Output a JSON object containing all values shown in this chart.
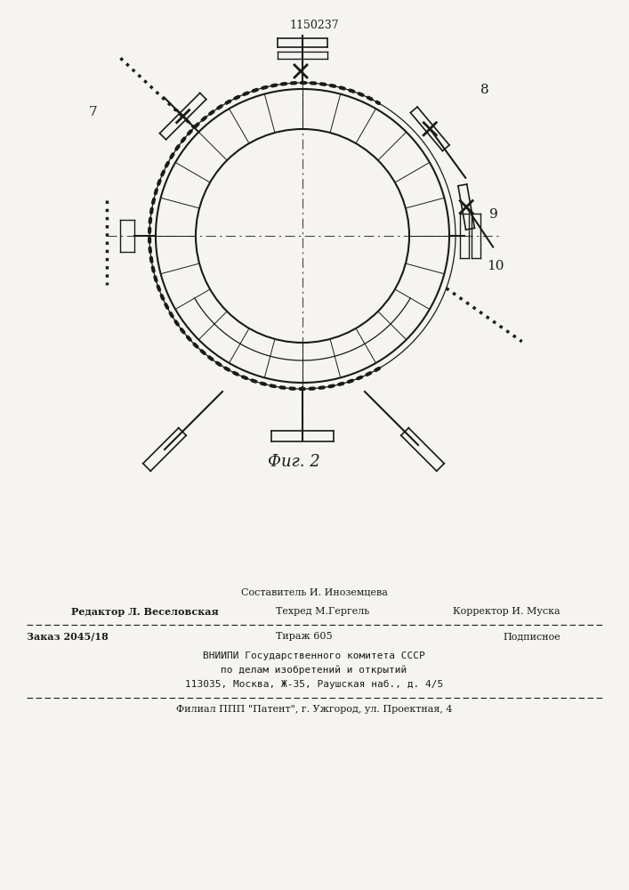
{
  "title": "1150237",
  "fig2_label": "Фиг. 2",
  "bg_color": "#f5f4f0",
  "line_color": "#1a1a1a",
  "footer_line1": "Составитель И. Иноземцева",
  "footer_line2_bold": "Редактор Л. Веселовская",
  "footer_line2_normal": "Техред М.Гергель",
  "footer_line2_right": "Корректор И. Муска",
  "footer_line3_bold": "Заказ 2045/18",
  "footer_line3_normal": "Тираж 605",
  "footer_line3_right": "Подписное",
  "footer_line4": "ВНИИПИ Государственного комитета СССР",
  "footer_line5": "по делам изобретений и открытий",
  "footer_line6": "113035, Москва, Ж-35, Раушская наб., д. 4/5",
  "footer_line7": "Филиал ППП \"Патент\", г. Ужгород, ул. Проектная, 4"
}
